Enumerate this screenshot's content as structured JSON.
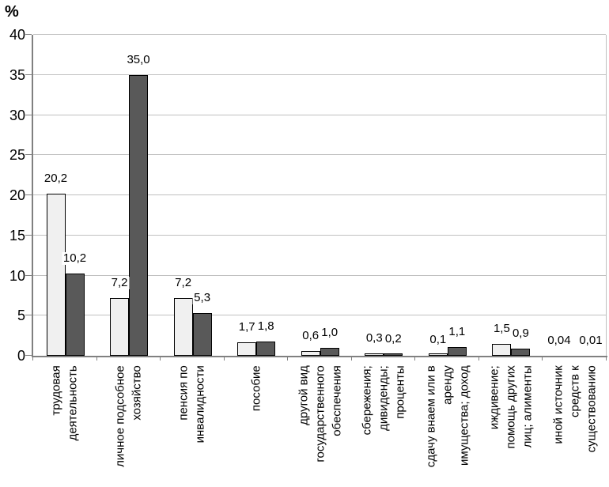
{
  "chart_data": {
    "type": "bar",
    "ylabel": "%",
    "ylim": [
      0,
      40
    ],
    "yticks": [
      0,
      5,
      10,
      15,
      20,
      25,
      30,
      35,
      40
    ],
    "grid": true,
    "legend": "none",
    "categories": [
      "трудовая деятельность",
      "личное подсобное хозяйство",
      "пенсия по инвалидности",
      "пособие",
      "другой вид государственного обеспечения",
      "сбережения; дивиденды; проценты",
      "сдачу внаем или в аренду имущества; доход",
      "иждивение; помощь других лиц; алименты",
      "иной источник средств к существованию"
    ],
    "category_lines": [
      [
        "трудовая",
        "деятельность"
      ],
      [
        "личное подсобное",
        "хозяйство"
      ],
      [
        "пенсия по",
        "инвалидности"
      ],
      [
        "пособие"
      ],
      [
        "другой вид",
        "государственного",
        "обеспечения"
      ],
      [
        "сбережения;",
        "дивиденды;",
        "проценты"
      ],
      [
        "сдачу внаем или в",
        "аренду",
        "имущества; доход"
      ],
      [
        "иждивение;",
        "помощь других",
        "лиц; алименты"
      ],
      [
        "иной источник",
        "средств к",
        "существованию"
      ]
    ],
    "series": [
      {
        "fill": "#f0f0f0",
        "values": [
          20.2,
          7.2,
          7.2,
          1.7,
          0.6,
          0.3,
          0.1,
          1.5,
          0.04
        ],
        "value_labels": [
          "20,2",
          "7,2",
          "7,2",
          "1,7",
          "0,6",
          "0,3",
          "0,1",
          "1,5",
          "0,04"
        ]
      },
      {
        "fill": "#595959",
        "values": [
          10.2,
          35.0,
          5.3,
          1.8,
          1.0,
          0.2,
          1.1,
          0.9,
          0.01
        ],
        "value_labels": [
          "10,2",
          "35,0",
          "5,3",
          "1,8",
          "1,0",
          "0,2",
          "1,1",
          "0,9",
          "0,01"
        ]
      }
    ],
    "colors": {
      "grid": "#c0c0c0",
      "axis": "#808080",
      "bar_border": "#000000",
      "label_background": "#ffffff",
      "text": "#000000",
      "background": "#ffffff"
    }
  }
}
